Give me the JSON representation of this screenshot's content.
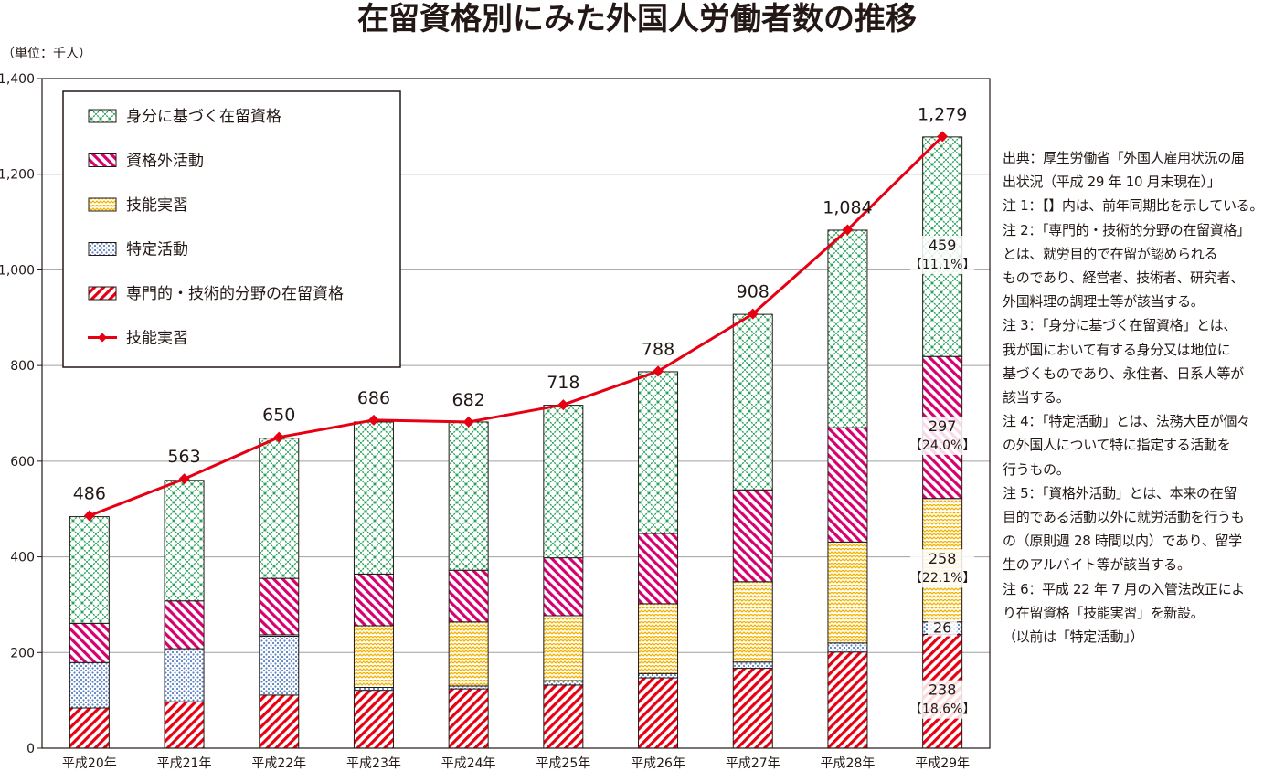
{
  "chart_data": {
    "type": "bar",
    "stacked": true,
    "title": "在留資格別にみた外国人労働者数の推移",
    "unit_label": "（単位：千人）",
    "categories": [
      "平成20年",
      "平成21年",
      "平成22年",
      "平成23年",
      "平成24年",
      "平成25年",
      "平成26年",
      "平成27年",
      "平成28年",
      "平成29年"
    ],
    "ylim": [
      0,
      1400
    ],
    "yticks": [
      0,
      200,
      400,
      600,
      800,
      1000,
      1200,
      1400
    ],
    "ytick_labels": [
      "0",
      "200",
      "400",
      "600",
      "800",
      "1,000",
      "1,200",
      "1,400"
    ],
    "grid": true,
    "legend_position": "top-left",
    "series": [
      {
        "name": "専門的・技術的分野の在留資格",
        "color": "#e60012",
        "pattern": "diagonal",
        "values": [
          84,
          97,
          111,
          121,
          124,
          132,
          147,
          167,
          201,
          238
        ]
      },
      {
        "name": "特定活動",
        "color": "#5b82c4",
        "pattern": "dots",
        "values": [
          95,
          111,
          123,
          6,
          6,
          9,
          9,
          13,
          19,
          26
        ]
      },
      {
        "name": "技能実習",
        "color": "#f0b400",
        "pattern": "zigzag",
        "values": [
          0,
          0,
          3,
          129,
          134,
          136,
          146,
          168,
          211,
          258
        ]
      },
      {
        "name": "資格外活動",
        "color": "#d6006f",
        "pattern": "diagonal",
        "values": [
          82,
          100,
          118,
          108,
          108,
          121,
          147,
          192,
          239,
          297
        ]
      },
      {
        "name": "身分に基づく在留資格",
        "color": "#22a055",
        "pattern": "crosshatch",
        "values": [
          223,
          252,
          293,
          318,
          310,
          319,
          338,
          367,
          413,
          459
        ]
      }
    ],
    "totals": [
      486,
      563,
      650,
      686,
      682,
      718,
      788,
      908,
      1084,
      1279
    ],
    "total_labels": [
      "486",
      "563",
      "650",
      "686",
      "682",
      "718",
      "788",
      "908",
      "1,084",
      "1,279"
    ],
    "line_series": {
      "name": "技能実習",
      "color": "#e60012",
      "values": [
        486,
        563,
        650,
        686,
        682,
        718,
        788,
        908,
        1084,
        1279
      ]
    },
    "annotations": [
      {
        "category": "平成29年",
        "series": "身分に基づく在留資格",
        "value": "459",
        "share": "【11.1%】"
      },
      {
        "category": "平成29年",
        "series": "資格外活動",
        "value": "297",
        "share": "【24.0%】"
      },
      {
        "category": "平成29年",
        "series": "技能実習",
        "value": "258",
        "share": "【22.1%】"
      },
      {
        "category": "平成29年",
        "series": "特定活動",
        "value": "26",
        "share": ""
      },
      {
        "category": "平成29年",
        "series": "専門的・技術的分野の在留資格",
        "value": "238",
        "share": "【18.6%】"
      }
    ],
    "legend": [
      {
        "label": "身分に基づく在留資格",
        "kind": "bar",
        "series": "身分に基づく在留資格"
      },
      {
        "label": "資格外活動",
        "kind": "bar",
        "series": "資格外活動"
      },
      {
        "label": "技能実習",
        "kind": "bar",
        "series": "技能実習"
      },
      {
        "label": "特定活動",
        "kind": "bar",
        "series": "特定活動"
      },
      {
        "label": "専門的・技術的分野の在留資格",
        "kind": "bar",
        "series": "専門的・技術的分野の在留資格"
      },
      {
        "label": "技能実習",
        "kind": "line",
        "series": "技能実習"
      }
    ]
  },
  "notes": [
    "出典：厚生労働省「外国人雇用状況の届",
    "出状況（平成 29 年 10 月末現在）」",
    "注 1：【】内は、前年同期比を示している。",
    "注 2：「専門的・技術的分野の在留資格」",
    "とは、就労目的で在留が認められる",
    "ものであり、経営者、技術者、研究者、",
    "外国料理の調理士等が該当する。",
    "注 3：「身分に基づく在留資格」とは、",
    "我が国において有する身分又は地位に",
    "基づくものであり、永住者、日系人等が",
    "該当する。",
    "注 4：「特定活動」とは、法務大臣が個々",
    "の外国人について特に指定する活動を",
    "行うもの。",
    "注 5：「資格外活動」とは、本来の在留",
    "目的である活動以外に就労活動を行うも",
    "の（原則週 28 時間以内）であり、留学",
    "生のアルバイト等が該当する。",
    "注 6：平成 22 年 7 月の入管法改正によ",
    "り在留資格「技能実習」を新設。",
    "（以前は「特定活動」）"
  ]
}
